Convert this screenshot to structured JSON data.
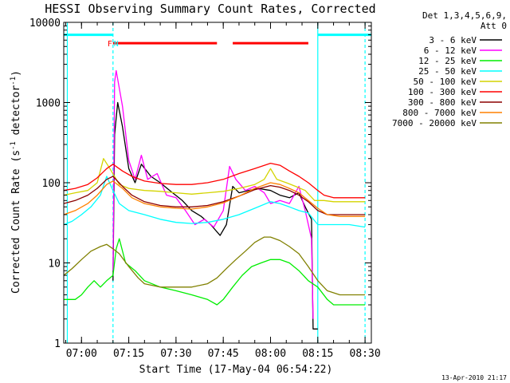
{
  "chart_data": {
    "type": "line",
    "title": "HESSI Observing Summary Count Rates, Corrected",
    "xlabel": "Start Time (17-May-04 06:54:22)",
    "ylabel": "Corrected Count Rate (s",
    "ylabel_sup1": "-1",
    "ylabel_mid": " detector",
    "ylabel_sup2": "-1",
    "ylabel_end": ")",
    "yscale": "log",
    "ylim": [
      1,
      10000
    ],
    "y_ticks": [
      {
        "value": 1,
        "label": "1"
      },
      {
        "value": 10,
        "label": "10"
      },
      {
        "value": 100,
        "label": "100"
      },
      {
        "value": 1000,
        "label": "1000"
      },
      {
        "value": 10000,
        "label": "10000"
      }
    ],
    "xlim": [
      "06:54:22",
      "08:32:00"
    ],
    "x_ticks": [
      {
        "value": "07:00",
        "label": "07:00"
      },
      {
        "value": "07:15",
        "label": "07:15"
      },
      {
        "value": "07:30",
        "label": "07:30"
      },
      {
        "value": "07:45",
        "label": "07:45"
      },
      {
        "value": "08:00",
        "label": "08:00"
      },
      {
        "value": "08:15",
        "label": "08:15"
      },
      {
        "value": "08:30",
        "label": "08:30"
      }
    ],
    "legend_header": [
      "Det 1,3,4,5,6,9,",
      "Att 0"
    ],
    "legend_placement": "right, outside plot",
    "series": [
      {
        "name": "3 - 6 keV",
        "color": "#000000",
        "points": [
          [
            "07:10",
            6
          ],
          [
            "07:10:30",
            400
          ],
          [
            "07:11:30",
            1000
          ],
          [
            "07:13",
            500
          ],
          [
            "07:15",
            150
          ],
          [
            "07:17",
            100
          ],
          [
            "07:19",
            170
          ],
          [
            "07:22",
            120
          ],
          [
            "07:25",
            100
          ],
          [
            "07:28",
            80
          ],
          [
            "07:32",
            60
          ],
          [
            "07:35",
            45
          ],
          [
            "07:38",
            38
          ],
          [
            "07:41",
            30
          ],
          [
            "07:44",
            22
          ],
          [
            "07:46",
            30
          ],
          [
            "07:48",
            90
          ],
          [
            "07:50",
            75
          ],
          [
            "07:53",
            80
          ],
          [
            "07:56",
            85
          ],
          [
            "08:00",
            80
          ],
          [
            "08:03",
            70
          ],
          [
            "08:06",
            65
          ],
          [
            "08:09",
            75
          ],
          [
            "08:11",
            50
          ],
          [
            "08:13",
            35
          ],
          [
            "08:13:30",
            1.5
          ],
          [
            "08:15",
            1.5
          ]
        ]
      },
      {
        "name": "6 - 12 keV",
        "color": "#ff00ff",
        "points": [
          [
            "07:10",
            8
          ],
          [
            "07:10:30",
            1800
          ],
          [
            "07:11",
            2500
          ],
          [
            "07:13",
            900
          ],
          [
            "07:15",
            190
          ],
          [
            "07:17",
            110
          ],
          [
            "07:19",
            220
          ],
          [
            "07:21",
            110
          ],
          [
            "07:24",
            130
          ],
          [
            "07:27",
            70
          ],
          [
            "07:30",
            65
          ],
          [
            "07:33",
            45
          ],
          [
            "07:36",
            30
          ],
          [
            "07:39",
            35
          ],
          [
            "07:42",
            28
          ],
          [
            "07:45",
            45
          ],
          [
            "07:47",
            160
          ],
          [
            "07:49",
            110
          ],
          [
            "07:52",
            80
          ],
          [
            "07:55",
            90
          ],
          [
            "07:58",
            75
          ],
          [
            "08:00",
            55
          ],
          [
            "08:03",
            60
          ],
          [
            "08:06",
            55
          ],
          [
            "08:09",
            90
          ],
          [
            "08:11",
            45
          ],
          [
            "08:13",
            20
          ],
          [
            "08:13:30",
            2
          ]
        ]
      },
      {
        "name": "12 - 25 keV",
        "color": "#00ee00",
        "points": [
          [
            "06:54:22",
            3.5
          ],
          [
            "06:58",
            3.5
          ],
          [
            "07:00",
            4
          ],
          [
            "07:02",
            5
          ],
          [
            "07:04",
            6
          ],
          [
            "07:06",
            5
          ],
          [
            "07:08",
            6
          ],
          [
            "07:10",
            7
          ],
          [
            "07:11",
            15
          ],
          [
            "07:12",
            20
          ],
          [
            "07:14",
            10
          ],
          [
            "07:17",
            8
          ],
          [
            "07:20",
            6
          ],
          [
            "07:25",
            5
          ],
          [
            "07:30",
            4.5
          ],
          [
            "07:35",
            4
          ],
          [
            "07:40",
            3.5
          ],
          [
            "07:43",
            3
          ],
          [
            "07:45",
            3.5
          ],
          [
            "07:48",
            5
          ],
          [
            "07:51",
            7
          ],
          [
            "07:54",
            9
          ],
          [
            "07:57",
            10
          ],
          [
            "08:00",
            11
          ],
          [
            "08:03",
            11
          ],
          [
            "08:06",
            10
          ],
          [
            "08:09",
            8
          ],
          [
            "08:12",
            6
          ],
          [
            "08:15",
            5
          ],
          [
            "08:18",
            3.5
          ],
          [
            "08:20",
            3
          ],
          [
            "08:25",
            3
          ],
          [
            "08:30",
            3
          ]
        ]
      },
      {
        "name": "25 - 50 keV",
        "color": "#00ffff",
        "points": [
          [
            "06:54:22",
            30
          ],
          [
            "06:57",
            33
          ],
          [
            "07:00",
            40
          ],
          [
            "07:03",
            50
          ],
          [
            "07:06",
            70
          ],
          [
            "07:08",
            120
          ],
          [
            "07:10",
            80
          ],
          [
            "07:12",
            55
          ],
          [
            "07:15",
            45
          ],
          [
            "07:20",
            40
          ],
          [
            "07:25",
            35
          ],
          [
            "07:30",
            32
          ],
          [
            "07:35",
            31
          ],
          [
            "07:40",
            32
          ],
          [
            "07:45",
            35
          ],
          [
            "07:50",
            40
          ],
          [
            "07:55",
            48
          ],
          [
            "08:00",
            58
          ],
          [
            "08:03",
            55
          ],
          [
            "08:06",
            50
          ],
          [
            "08:09",
            45
          ],
          [
            "08:12",
            42
          ],
          [
            "08:15",
            30
          ],
          [
            "08:20",
            30
          ],
          [
            "08:25",
            30
          ],
          [
            "08:30",
            28
          ]
        ]
      },
      {
        "name": "50 - 100 keV",
        "color": "#d4d400",
        "points": [
          [
            "06:54:22",
            70
          ],
          [
            "06:58",
            75
          ],
          [
            "07:02",
            80
          ],
          [
            "07:05",
            100
          ],
          [
            "07:07",
            200
          ],
          [
            "07:09",
            150
          ],
          [
            "07:12",
            95
          ],
          [
            "07:15",
            85
          ],
          [
            "07:20",
            80
          ],
          [
            "07:25",
            78
          ],
          [
            "07:30",
            75
          ],
          [
            "07:35",
            72
          ],
          [
            "07:40",
            75
          ],
          [
            "07:45",
            78
          ],
          [
            "07:50",
            85
          ],
          [
            "07:55",
            95
          ],
          [
            "07:58",
            110
          ],
          [
            "08:00",
            150
          ],
          [
            "08:02",
            110
          ],
          [
            "08:05",
            100
          ],
          [
            "08:08",
            90
          ],
          [
            "08:11",
            80
          ],
          [
            "08:14",
            60
          ],
          [
            "08:17",
            60
          ],
          [
            "08:20",
            58
          ],
          [
            "08:25",
            58
          ],
          [
            "08:30",
            58
          ]
        ]
      },
      {
        "name": "100 - 300 keV",
        "color": "#ff0000",
        "points": [
          [
            "06:54:22",
            80
          ],
          [
            "06:58",
            85
          ],
          [
            "07:02",
            95
          ],
          [
            "07:05",
            115
          ],
          [
            "07:08",
            150
          ],
          [
            "07:10",
            170
          ],
          [
            "07:13",
            140
          ],
          [
            "07:16",
            120
          ],
          [
            "07:20",
            105
          ],
          [
            "07:25",
            98
          ],
          [
            "07:30",
            95
          ],
          [
            "07:35",
            95
          ],
          [
            "07:40",
            100
          ],
          [
            "07:45",
            110
          ],
          [
            "07:50",
            130
          ],
          [
            "07:55",
            150
          ],
          [
            "08:00",
            175
          ],
          [
            "08:03",
            165
          ],
          [
            "08:06",
            140
          ],
          [
            "08:09",
            120
          ],
          [
            "08:12",
            100
          ],
          [
            "08:15",
            80
          ],
          [
            "08:17",
            70
          ],
          [
            "08:20",
            65
          ],
          [
            "08:25",
            65
          ],
          [
            "08:30",
            65
          ]
        ]
      },
      {
        "name": "300 - 800 keV",
        "color": "#8b0000",
        "points": [
          [
            "06:54:22",
            55
          ],
          [
            "06:58",
            60
          ],
          [
            "07:02",
            70
          ],
          [
            "07:05",
            85
          ],
          [
            "07:08",
            110
          ],
          [
            "07:10",
            120
          ],
          [
            "07:13",
            90
          ],
          [
            "07:16",
            70
          ],
          [
            "07:20",
            58
          ],
          [
            "07:25",
            52
          ],
          [
            "07:30",
            50
          ],
          [
            "07:35",
            50
          ],
          [
            "07:40",
            52
          ],
          [
            "07:45",
            58
          ],
          [
            "07:50",
            68
          ],
          [
            "07:55",
            82
          ],
          [
            "08:00",
            92
          ],
          [
            "08:03",
            88
          ],
          [
            "08:06",
            80
          ],
          [
            "08:09",
            70
          ],
          [
            "08:12",
            58
          ],
          [
            "08:15",
            45
          ],
          [
            "08:18",
            40
          ],
          [
            "08:22",
            40
          ],
          [
            "08:26",
            40
          ],
          [
            "08:30",
            40
          ]
        ]
      },
      {
        "name": "800 - 7000 keV",
        "color": "#ff8000",
        "points": [
          [
            "06:54:22",
            40
          ],
          [
            "06:58",
            45
          ],
          [
            "07:02",
            55
          ],
          [
            "07:05",
            70
          ],
          [
            "07:08",
            95
          ],
          [
            "07:10",
            105
          ],
          [
            "07:13",
            85
          ],
          [
            "07:16",
            65
          ],
          [
            "07:20",
            55
          ],
          [
            "07:25",
            50
          ],
          [
            "07:30",
            48
          ],
          [
            "07:35",
            47
          ],
          [
            "07:40",
            50
          ],
          [
            "07:45",
            56
          ],
          [
            "07:50",
            68
          ],
          [
            "07:55",
            85
          ],
          [
            "08:00",
            100
          ],
          [
            "08:03",
            95
          ],
          [
            "08:06",
            85
          ],
          [
            "08:09",
            75
          ],
          [
            "08:12",
            60
          ],
          [
            "08:15",
            48
          ],
          [
            "08:18",
            40
          ],
          [
            "08:22",
            38
          ],
          [
            "08:26",
            38
          ],
          [
            "08:30",
            38
          ]
        ]
      },
      {
        "name": "7000 - 20000 keV",
        "color": "#808000",
        "points": [
          [
            "06:54:22",
            7
          ],
          [
            "06:57",
            8.5
          ],
          [
            "07:00",
            11
          ],
          [
            "07:03",
            14
          ],
          [
            "07:06",
            16
          ],
          [
            "07:08",
            17
          ],
          [
            "07:10",
            15
          ],
          [
            "07:12",
            13
          ],
          [
            "07:15",
            9
          ],
          [
            "07:18",
            6.5
          ],
          [
            "07:20",
            5.5
          ],
          [
            "07:25",
            5
          ],
          [
            "07:30",
            5
          ],
          [
            "07:35",
            5
          ],
          [
            "07:40",
            5.5
          ],
          [
            "07:43",
            6.5
          ],
          [
            "07:46",
            8.5
          ],
          [
            "07:49",
            11
          ],
          [
            "07:52",
            14
          ],
          [
            "07:55",
            18
          ],
          [
            "07:58",
            21
          ],
          [
            "08:00",
            21
          ],
          [
            "08:03",
            19
          ],
          [
            "08:06",
            16
          ],
          [
            "08:09",
            13
          ],
          [
            "08:12",
            9
          ],
          [
            "08:15",
            6
          ],
          [
            "08:18",
            4.5
          ],
          [
            "08:22",
            4
          ],
          [
            "08:26",
            4
          ],
          [
            "08:30",
            4
          ]
        ]
      }
    ],
    "flag_bars": [
      {
        "label": "",
        "color": "#00ffff",
        "segments": [
          [
            "06:54:22",
            "07:10"
          ],
          [
            "08:15",
            "08:32:00"
          ]
        ]
      },
      {
        "label": "",
        "color": "#ff0000",
        "segments": [
          [
            "07:10",
            "07:43"
          ],
          [
            "07:48",
            "08:12"
          ]
        ]
      }
    ],
    "flag_labels": [
      {
        "text": "F",
        "color": "#ff0000",
        "at": "07:09"
      },
      {
        "text": "N",
        "color": "#00ffff",
        "at": "07:11"
      }
    ],
    "vertical_markers": [
      {
        "time": "06:55:30",
        "color": "#00ffff",
        "style": "solid"
      },
      {
        "time": "07:10",
        "color": "#00ffff",
        "style": "dashed"
      },
      {
        "time": "08:15",
        "color": "#00ffff",
        "style": "solid"
      },
      {
        "time": "08:30",
        "color": "#00ffff",
        "style": "dashed"
      }
    ],
    "footer_date": "13-Apr-2010 21:17"
  }
}
